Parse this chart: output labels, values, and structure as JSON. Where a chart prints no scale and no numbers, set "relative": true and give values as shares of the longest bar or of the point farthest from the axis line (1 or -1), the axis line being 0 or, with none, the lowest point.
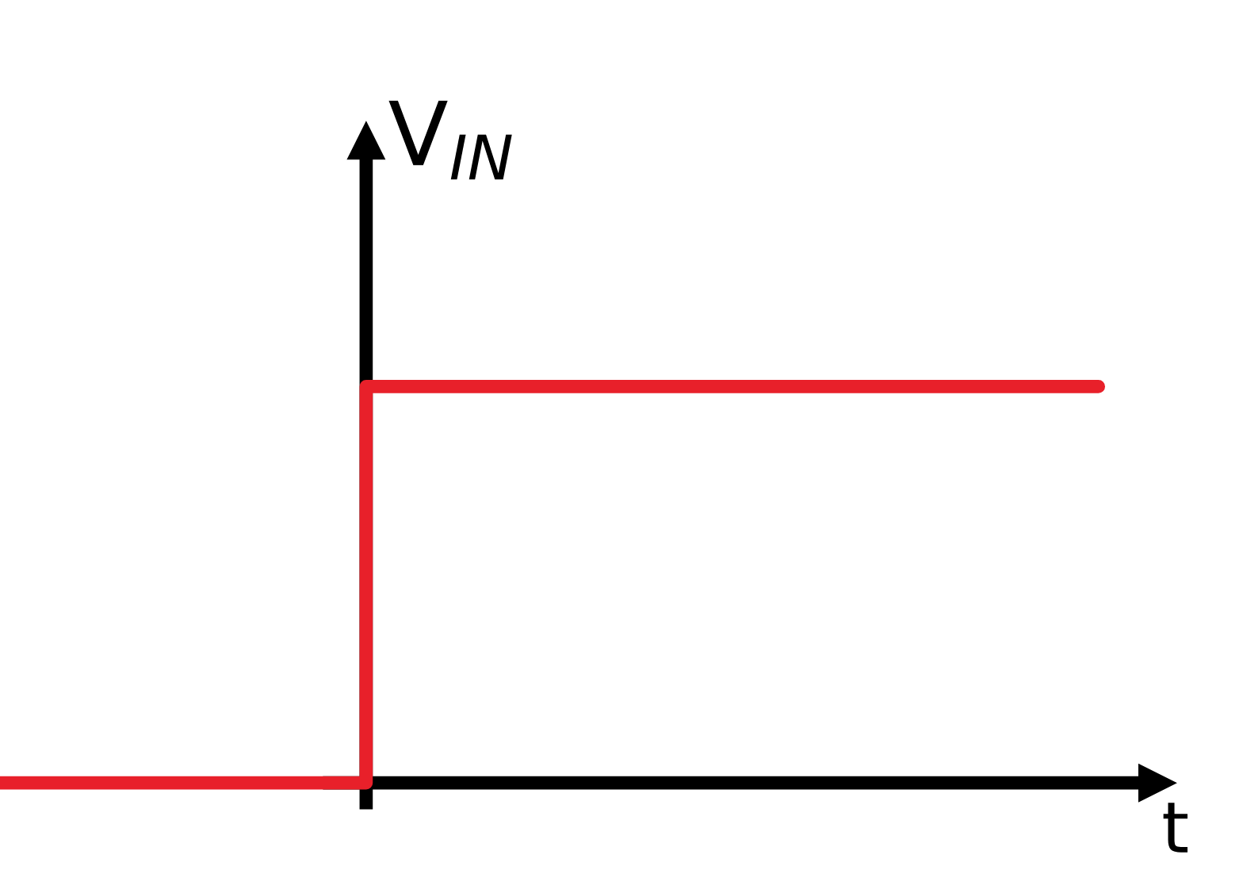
{
  "chart_data": {
    "type": "step",
    "xlabel": "t",
    "ylabel": "V$_{IN}$",
    "relative": true,
    "categories": [
      null,
      null,
      null,
      null,
      null,
      null,
      null
    ],
    "series": [
      {
        "color": "#e8202a",
        "values": [
          0,
          0,
          1,
          1,
          1,
          1,
          1
        ]
      }
    ],
    "grid": false,
    "legend": false
  }
}
